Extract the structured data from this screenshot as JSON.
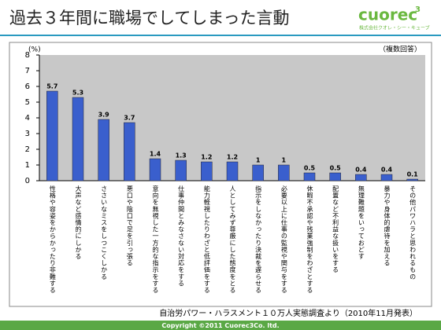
{
  "header": {
    "title": "過去３年間に職場でしてしまった言動",
    "logo": "cuorec",
    "logo_sup": "3",
    "logo_sub": "株式会社クオレ・シー・キューブ"
  },
  "chart_data": {
    "type": "bar",
    "y_label": "(%)",
    "note": "（複数回答）",
    "categories": [
      "性格や容姿をからかったり非難する",
      "大声など感情的にしかる",
      "ささいなミスをしつこくしかる",
      "悪口や陰口で足を引っ張る",
      "意向を無視した一方的な指示をする",
      "仕事仲間とみなさない対応をする",
      "能力軽視したりわざと低評価をする",
      "人としてみず尊厳にした態度をとる",
      "指示をしなかったり決裁を遅らせる",
      "必要以上に仕事の監視や関与をする",
      "休暇不承認や残業強制をわざとする",
      "配置など不利益な扱いをする",
      "無理難題をいっておどす",
      "暴力や身体的虐待を加える",
      "その他パワハラと思われるもの"
    ],
    "values": [
      5.7,
      5.3,
      3.9,
      3.7,
      1.4,
      1.3,
      1.2,
      1.2,
      1,
      1,
      0.5,
      0.5,
      0.4,
      0.4,
      0.1
    ],
    "color": "#3a5fcd",
    "plot_background": "#c8c8c8",
    "ylim": [
      0,
      8
    ],
    "yticks": [
      0,
      1,
      2,
      3,
      4,
      5,
      6,
      7,
      8
    ],
    "source": "自治労パワー・ハラスメント１０万人実態調査より（2010年11月発表）"
  },
  "footer": {
    "text": "Copyright ©2011 Cuorec3Co. ltd."
  }
}
